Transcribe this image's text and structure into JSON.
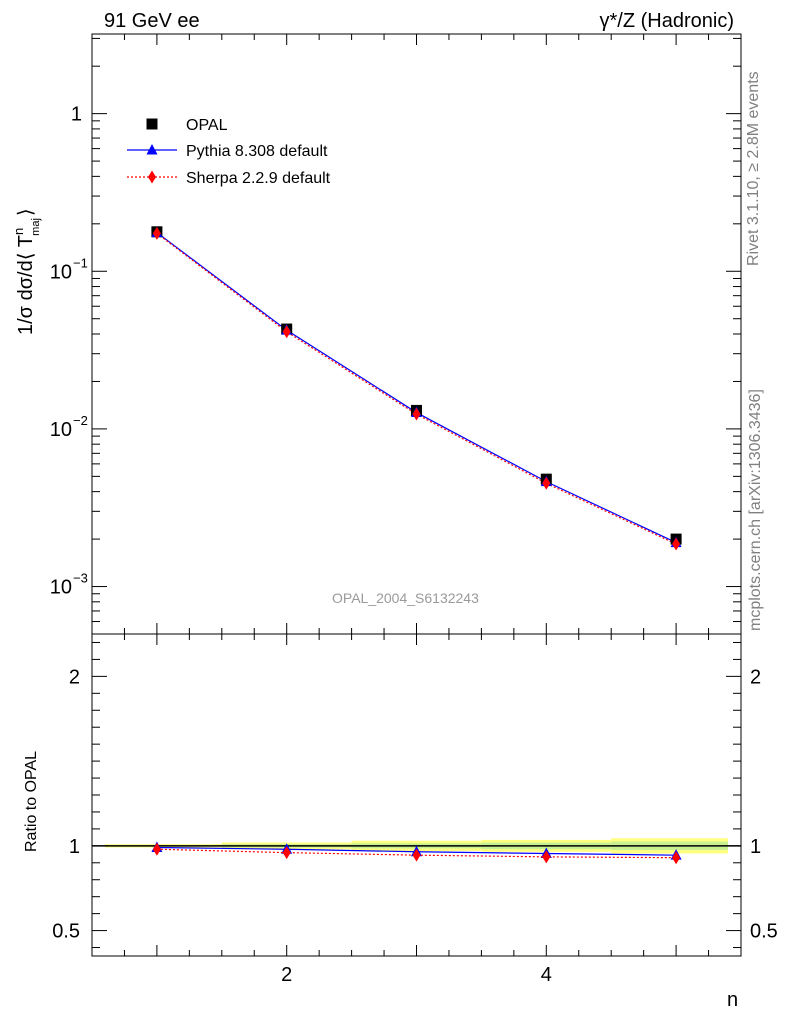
{
  "header": {
    "left_title": "91 GeV ee",
    "right_title": "γ*/Z (Hadronic)"
  },
  "side_text": {
    "rivet": "Rivet 3.1.10, ≥ 2.8M events",
    "mcplots": "mcplots.cern.ch [arXiv:1306.3436]"
  },
  "watermark": "OPAL_2004_S6132243",
  "legend": [
    {
      "label": "OPAL",
      "marker": "square",
      "color": "#000000"
    },
    {
      "label": "Pythia 8.308 default",
      "marker": "triangle",
      "color": "#0000ff",
      "line": "solid"
    },
    {
      "label": "Sherpa 2.2.9 default",
      "marker": "diamond",
      "color": "#ff0000",
      "line": "dotted"
    }
  ],
  "chart_data": [
    {
      "type": "line",
      "panel": "main",
      "ylabel": "1/σ dσ/d⟨ T",
      "ylabel_sup": "n",
      "ylabel_sub": "maj",
      "ylabel_close": "⟩",
      "yscale": "log",
      "xlim": [
        0.5,
        5.5
      ],
      "ylim": [
        0.0005,
        3.2
      ],
      "yticks": [
        {
          "value": 0.001,
          "base": "10",
          "exp": "−3"
        },
        {
          "value": 0.01,
          "base": "10",
          "exp": "−2"
        },
        {
          "value": 0.1,
          "base": "10",
          "exp": "−1"
        },
        {
          "value": 1,
          "base": "1",
          "exp": ""
        }
      ],
      "x": [
        1,
        2,
        3,
        4,
        5
      ],
      "series": [
        {
          "name": "OPAL",
          "values": [
            0.178,
            0.043,
            0.0131,
            0.0048,
            0.002
          ],
          "color": "#000000",
          "marker": "square"
        },
        {
          "name": "Pythia 8.308 default",
          "values": [
            0.176,
            0.0423,
            0.0127,
            0.00463,
            0.0019
          ],
          "color": "#0000ff",
          "marker": "triangle"
        },
        {
          "name": "Sherpa 2.2.9 default",
          "values": [
            0.174,
            0.0413,
            0.0124,
            0.00452,
            0.00186
          ],
          "color": "#ff0000",
          "marker": "diamond"
        }
      ]
    },
    {
      "type": "line",
      "panel": "ratio",
      "ylabel": "Ratio to OPAL",
      "xlabel": "n",
      "xlim": [
        0.5,
        5.5
      ],
      "ylim": [
        0.35,
        2.25
      ],
      "xticks": [
        "2",
        "4"
      ],
      "yticks": [
        "0.5",
        "1",
        "2"
      ],
      "x": [
        1,
        2,
        3,
        4,
        5
      ],
      "band_halfwidth_inner": [
        0.005,
        0.01,
        0.015,
        0.02,
        0.025
      ],
      "band_halfwidth_outer": [
        0.01,
        0.02,
        0.03,
        0.035,
        0.045
      ],
      "series": [
        {
          "name": "Pythia 8.308 default",
          "values": [
            0.99,
            0.98,
            0.965,
            0.955,
            0.945
          ],
          "color": "#0000ff",
          "marker": "triangle"
        },
        {
          "name": "Sherpa 2.2.9 default",
          "values": [
            0.98,
            0.96,
            0.945,
            0.935,
            0.93
          ],
          "color": "#ff0000",
          "marker": "diamond"
        }
      ]
    }
  ]
}
